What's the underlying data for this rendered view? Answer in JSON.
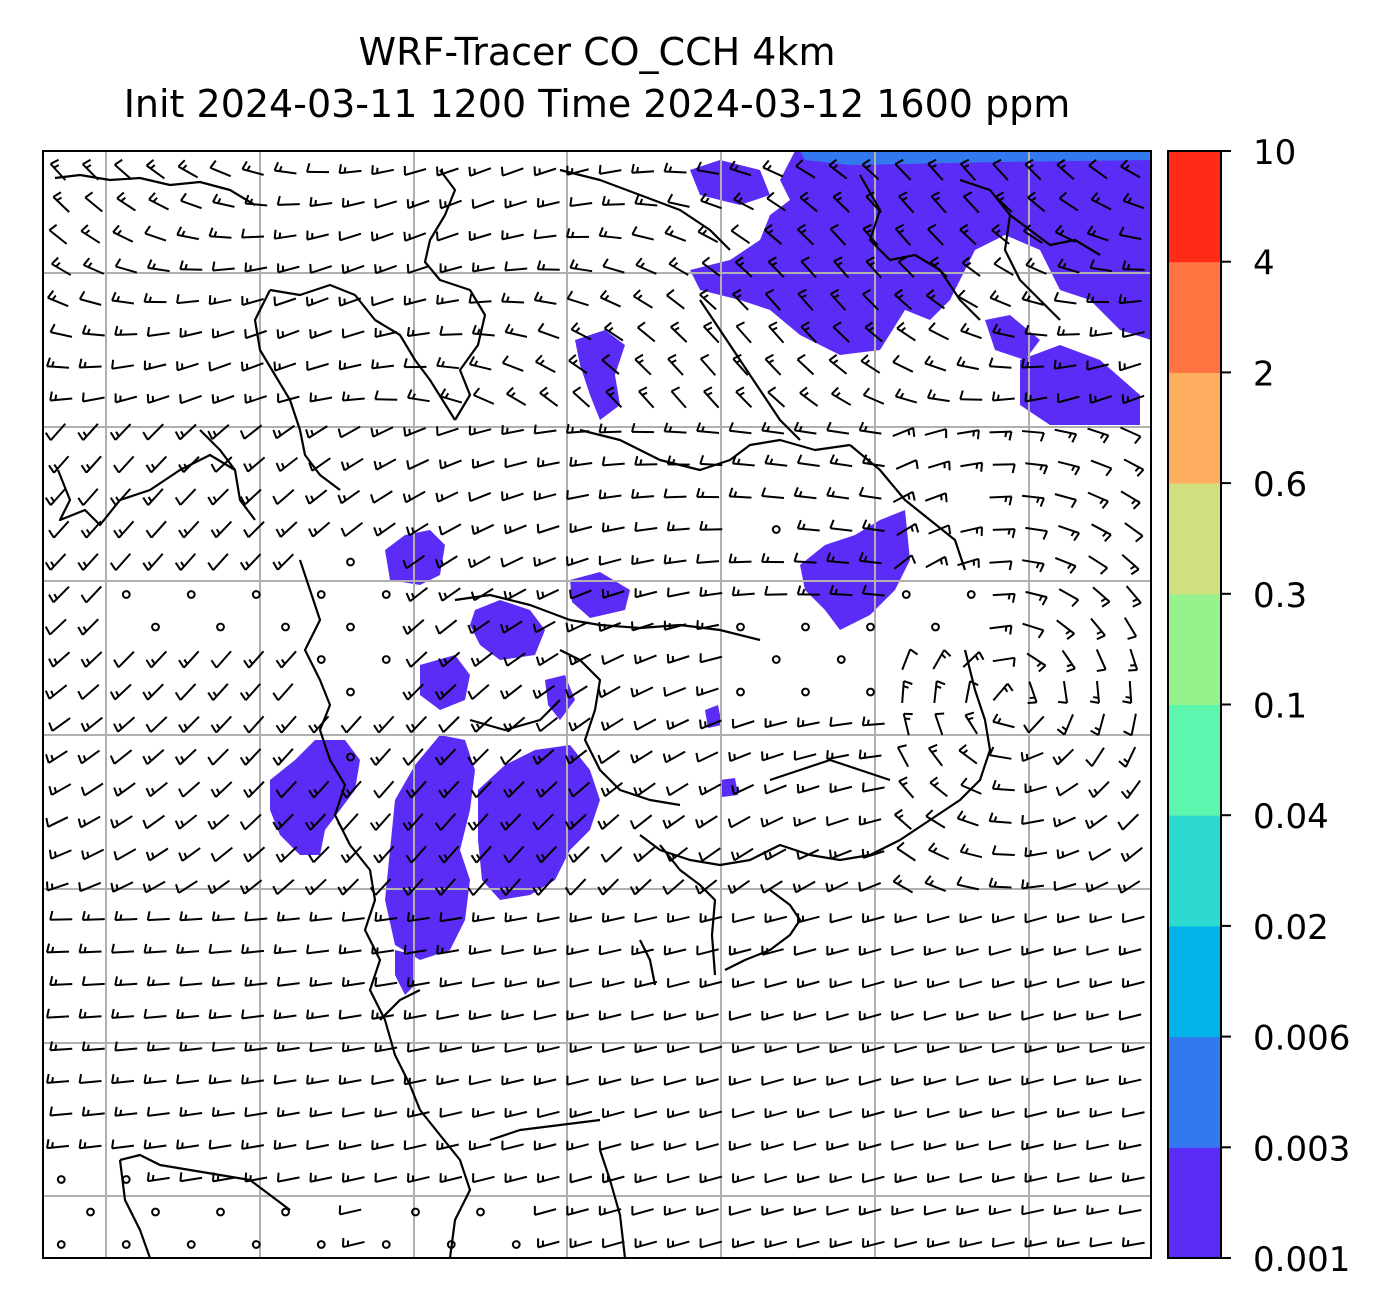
{
  "title": {
    "line1": "WRF-Tracer CO_CCH 4km",
    "line2": "Init 2024-03-11 1200 Time 2024-03-12 1600 ppm"
  },
  "colorbar": {
    "levels": [
      "0.001",
      "0.003",
      "0.006",
      "0.02",
      "0.04",
      "0.1",
      "0.3",
      "0.6",
      "2",
      "4",
      "10"
    ],
    "colors": [
      "#5b2cf6",
      "#3279f0",
      "#02b2e8",
      "#2cdad0",
      "#5df6ae",
      "#95f28c",
      "#d0e07f",
      "#ffae5f",
      "#ff7440",
      "#ff2b16"
    ]
  },
  "map": {
    "grid_color": "#b0b0b0",
    "tracer_color": "#5b2cf6",
    "tracer_edge_color": "#3279f0",
    "barb_color": "#000000",
    "coastline_color": "#000000"
  }
}
